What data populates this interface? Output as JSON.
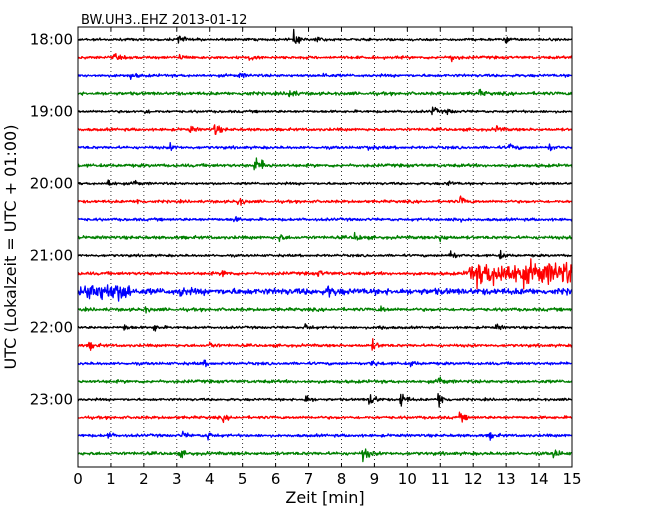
{
  "chart_data": {
    "type": "line",
    "title": "BW.UH3..EHZ 2013-01-12",
    "xlabel": "Zeit  [min]",
    "ylabel": "UTC (Lokalzeit = UTC + 01:00)",
    "xlim": [
      0,
      15
    ],
    "x_ticks": [
      0,
      1,
      2,
      3,
      4,
      5,
      6,
      7,
      8,
      9,
      10,
      11,
      12,
      13,
      14,
      15
    ],
    "y_tick_labels": [
      "18:00",
      "19:00",
      "20:00",
      "21:00",
      "22:00",
      "23:00"
    ],
    "grid": "vertical dotted at each minute",
    "line_colors": [
      "#000000",
      "#ff0000",
      "#0000ff",
      "#008000"
    ],
    "traces": [
      {
        "start": "17:45",
        "color": "#000000",
        "noise": 0.35,
        "events": [
          {
            "t": 3.05,
            "a": 1.8
          },
          {
            "t": 6.55,
            "a": 2.2
          },
          {
            "t": 7.2,
            "a": 1.2
          },
          {
            "t": 13.0,
            "a": 1.0
          }
        ]
      },
      {
        "start": "18:00",
        "color": "#ff0000",
        "noise": 0.4,
        "events": [
          {
            "t": 1.1,
            "a": 0.9
          },
          {
            "t": 3.1,
            "a": 1.0
          },
          {
            "t": 5.2,
            "a": 0.8
          },
          {
            "t": 11.3,
            "a": 1.6
          }
        ]
      },
      {
        "start": "18:15",
        "color": "#0000ff",
        "noise": 0.4,
        "events": [
          {
            "t": 1.6,
            "a": 1.1
          },
          {
            "t": 4.9,
            "a": 0.8
          },
          {
            "t": 7.4,
            "a": 0.9
          }
        ]
      },
      {
        "start": "18:30",
        "color": "#008000",
        "noise": 0.45,
        "events": [
          {
            "t": 5.0,
            "a": 0.8
          },
          {
            "t": 6.4,
            "a": 2.0
          },
          {
            "t": 12.2,
            "a": 0.9
          }
        ]
      },
      {
        "start": "18:45",
        "color": "#000000",
        "noise": 0.35,
        "events": [
          {
            "t": 2.0,
            "a": 0.8
          },
          {
            "t": 10.75,
            "a": 1.6
          },
          {
            "t": 11.2,
            "a": 0.9
          }
        ]
      },
      {
        "start": "19:00",
        "color": "#ff0000",
        "noise": 0.4,
        "events": [
          {
            "t": 3.4,
            "a": 1.0
          },
          {
            "t": 4.15,
            "a": 2.0
          },
          {
            "t": 12.7,
            "a": 1.1
          }
        ]
      },
      {
        "start": "19:15",
        "color": "#0000ff",
        "noise": 0.4,
        "events": [
          {
            "t": 2.8,
            "a": 0.9
          },
          {
            "t": 8.8,
            "a": 0.9
          },
          {
            "t": 13.1,
            "a": 1.3
          },
          {
            "t": 14.3,
            "a": 1.1
          }
        ]
      },
      {
        "start": "19:30",
        "color": "#008000",
        "noise": 0.45,
        "events": [
          {
            "t": 5.35,
            "a": 2.6
          },
          {
            "t": 5.6,
            "a": 1.2
          }
        ]
      },
      {
        "start": "19:45",
        "color": "#000000",
        "noise": 0.35,
        "events": [
          {
            "t": 0.9,
            "a": 1.6
          },
          {
            "t": 1.7,
            "a": 1.0
          },
          {
            "t": 11.2,
            "a": 1.0
          }
        ]
      },
      {
        "start": "20:00",
        "color": "#ff0000",
        "noise": 0.4,
        "events": [
          {
            "t": 1.8,
            "a": 0.8
          },
          {
            "t": 4.85,
            "a": 1.5
          },
          {
            "t": 11.6,
            "a": 1.6
          }
        ]
      },
      {
        "start": "20:15",
        "color": "#0000ff",
        "noise": 0.4,
        "events": [
          {
            "t": 4.7,
            "a": 1.0
          },
          {
            "t": 11.4,
            "a": 1.3
          }
        ]
      },
      {
        "start": "20:30",
        "color": "#008000",
        "noise": 0.45,
        "events": [
          {
            "t": 6.1,
            "a": 1.1
          },
          {
            "t": 8.4,
            "a": 1.6
          },
          {
            "t": 11.0,
            "a": 1.3
          }
        ]
      },
      {
        "start": "20:45",
        "color": "#000000",
        "noise": 0.35,
        "events": [
          {
            "t": 11.25,
            "a": 2.5
          },
          {
            "t": 12.8,
            "a": 1.3
          }
        ]
      },
      {
        "start": "21:00",
        "color": "#ff0000",
        "noise": 0.45,
        "burst": {
          "from": 11.7,
          "to": 15.0,
          "a": 2.9
        },
        "events": [
          {
            "t": 4.4,
            "a": 1.2
          },
          {
            "t": 7.3,
            "a": 0.9
          }
        ]
      },
      {
        "start": "21:15",
        "color": "#0000ff",
        "noise": 0.9,
        "burst": {
          "from": 0.0,
          "to": 1.6,
          "a": 1.8
        },
        "events": [
          {
            "t": 3.1,
            "a": 1.3
          },
          {
            "t": 7.6,
            "a": 1.6
          }
        ]
      },
      {
        "start": "21:30",
        "color": "#008000",
        "noise": 0.45,
        "events": [
          {
            "t": 2.0,
            "a": 0.9
          },
          {
            "t": 9.2,
            "a": 1.0
          }
        ]
      },
      {
        "start": "21:45",
        "color": "#000000",
        "noise": 0.35,
        "events": [
          {
            "t": 1.4,
            "a": 1.1
          },
          {
            "t": 2.3,
            "a": 1.2
          },
          {
            "t": 6.9,
            "a": 1.3
          },
          {
            "t": 9.1,
            "a": 1.2
          },
          {
            "t": 12.7,
            "a": 1.0
          }
        ]
      },
      {
        "start": "22:00",
        "color": "#ff0000",
        "noise": 0.4,
        "events": [
          {
            "t": 0.35,
            "a": 1.3
          },
          {
            "t": 4.0,
            "a": 1.0
          },
          {
            "t": 8.95,
            "a": 1.6
          }
        ]
      },
      {
        "start": "22:15",
        "color": "#0000ff",
        "noise": 0.4,
        "events": [
          {
            "t": 3.8,
            "a": 0.9
          },
          {
            "t": 8.9,
            "a": 1.3
          },
          {
            "t": 10.1,
            "a": 0.8
          }
        ]
      },
      {
        "start": "22:30",
        "color": "#008000",
        "noise": 0.45,
        "events": [
          {
            "t": 10.95,
            "a": 1.6
          }
        ]
      },
      {
        "start": "22:45",
        "color": "#000000",
        "noise": 0.35,
        "events": [
          {
            "t": 6.9,
            "a": 1.6
          },
          {
            "t": 8.85,
            "a": 3.2
          },
          {
            "t": 9.8,
            "a": 3.0
          },
          {
            "t": 10.95,
            "a": 3.2
          }
        ]
      },
      {
        "start": "23:00",
        "color": "#ff0000",
        "noise": 0.4,
        "events": [
          {
            "t": 4.4,
            "a": 0.9
          },
          {
            "t": 11.6,
            "a": 1.5
          }
        ]
      },
      {
        "start": "23:15",
        "color": "#0000ff",
        "noise": 0.4,
        "events": [
          {
            "t": 0.9,
            "a": 0.9
          },
          {
            "t": 3.15,
            "a": 1.2
          },
          {
            "t": 3.9,
            "a": 1.5
          },
          {
            "t": 12.5,
            "a": 1.1
          }
        ]
      },
      {
        "start": "23:30",
        "color": "#008000",
        "noise": 0.45,
        "events": [
          {
            "t": 3.1,
            "a": 1.1
          },
          {
            "t": 8.65,
            "a": 2.8
          },
          {
            "t": 14.45,
            "a": 1.6
          }
        ]
      }
    ]
  }
}
